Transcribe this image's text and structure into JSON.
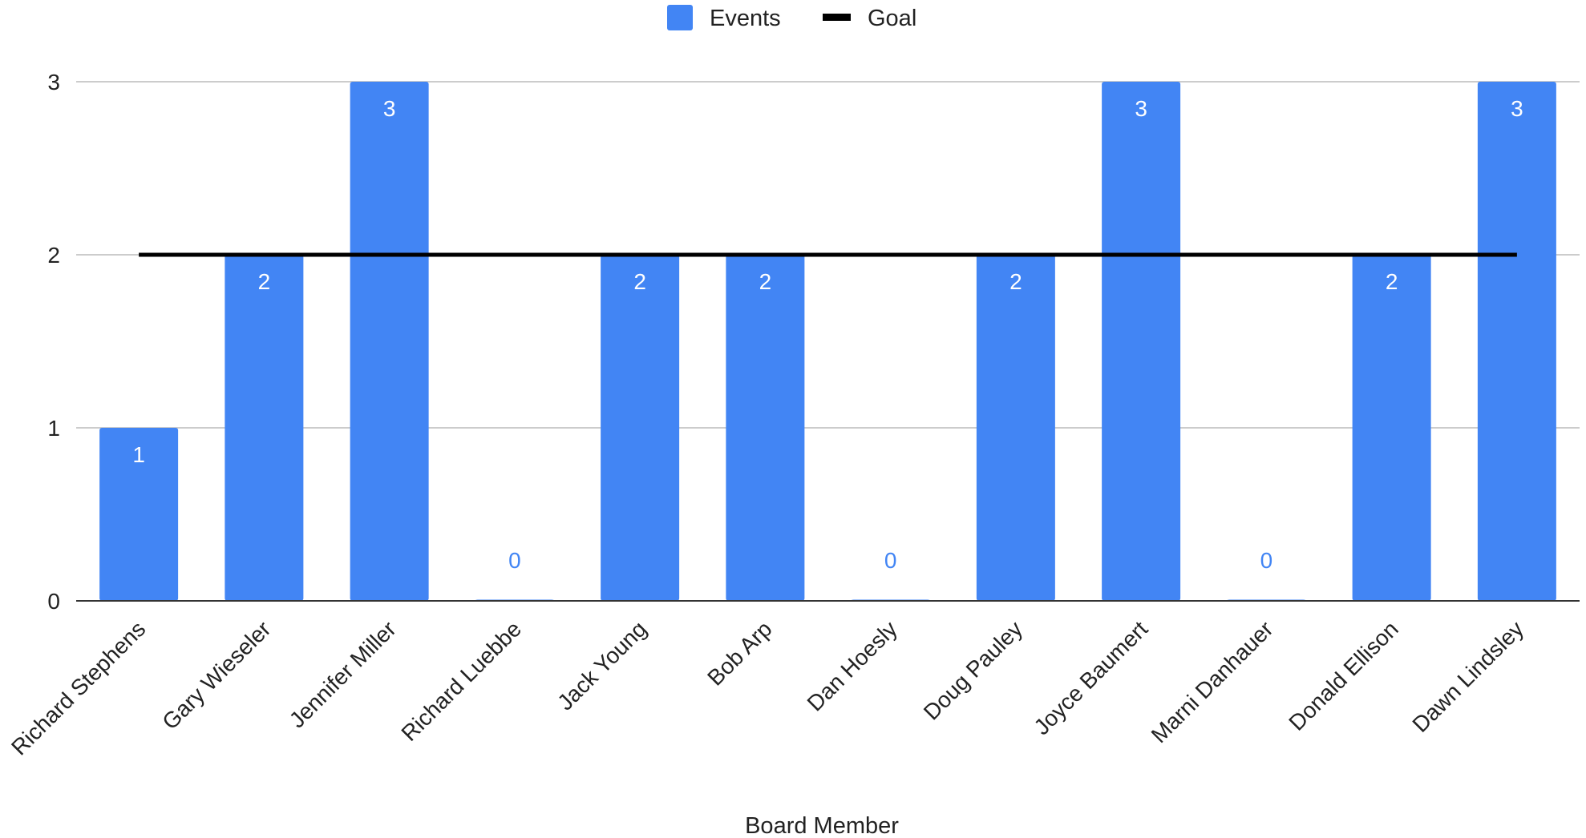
{
  "chart_data": {
    "type": "bar",
    "categories": [
      "Richard Stephens",
      "Gary Wieseler",
      "Jennifer Miller",
      "Richard Luebbe",
      "Jack Young",
      "Bob Arp",
      "Dan Hoesly",
      "Doug Pauley",
      "Joyce Baumert",
      "Marni Danhauer",
      "Donald Ellison",
      "Dawn Lindsley"
    ],
    "series": [
      {
        "name": "Events",
        "type": "bar",
        "color": "#4285f4",
        "values": [
          1,
          2,
          3,
          0,
          2,
          2,
          0,
          2,
          3,
          0,
          2,
          3
        ]
      },
      {
        "name": "Goal",
        "type": "line",
        "color": "#000000",
        "values": [
          2,
          2,
          2,
          2,
          2,
          2,
          2,
          2,
          2,
          2,
          2,
          2
        ]
      }
    ],
    "title": "",
    "xlabel": "Board Member",
    "ylabel": "",
    "ylim": [
      0,
      3
    ],
    "yticks": [
      0,
      1,
      2,
      3
    ],
    "grid": true,
    "legend_position": "top-center",
    "data_labels": true
  }
}
